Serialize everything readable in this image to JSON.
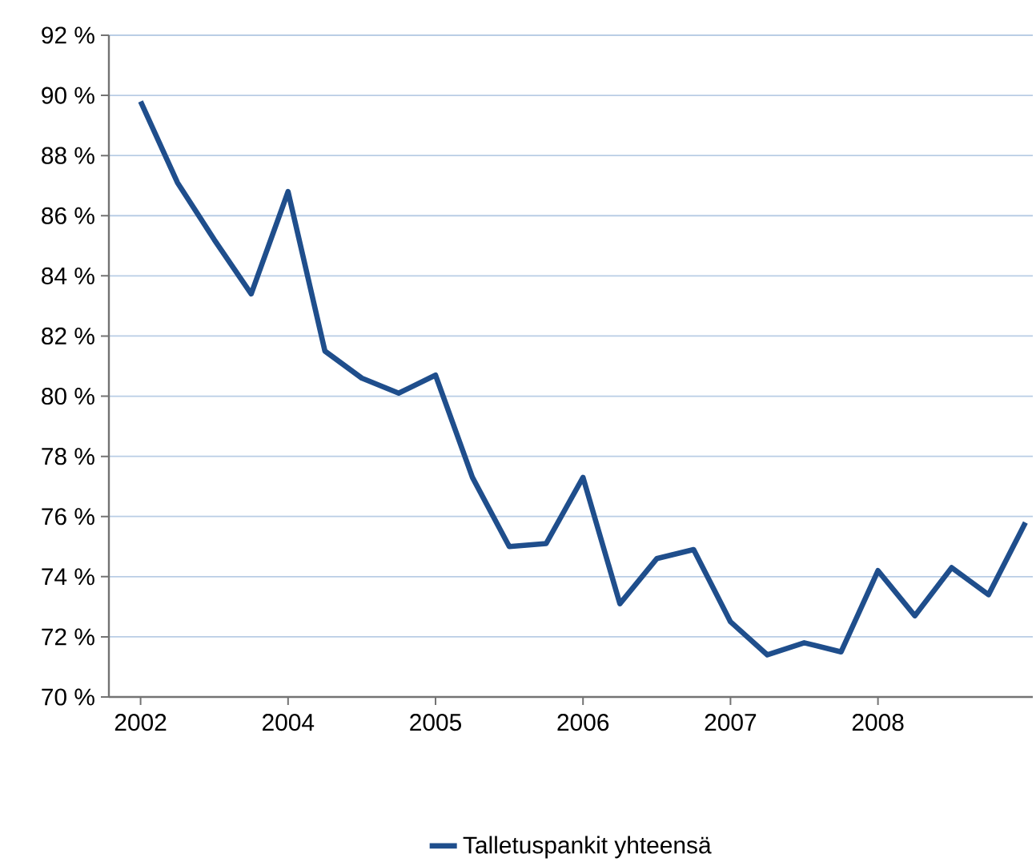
{
  "chart_data": {
    "type": "line",
    "categories": [
      "2002",
      null,
      null,
      null,
      "2004",
      null,
      null,
      null,
      "2005",
      null,
      null,
      null,
      "2006",
      null,
      null,
      null,
      "2007",
      null,
      null,
      null,
      "2008",
      null,
      null,
      null,
      null
    ],
    "series": [
      {
        "name": "Talletuspankit yhteensä",
        "color": "#1f4e8c",
        "values": [
          89.8,
          87.1,
          85.2,
          83.4,
          86.8,
          81.5,
          80.6,
          80.1,
          80.7,
          77.3,
          75.0,
          75.1,
          77.3,
          73.1,
          74.6,
          74.9,
          72.5,
          71.4,
          71.8,
          71.5,
          74.2,
          72.7,
          74.3,
          73.4,
          75.8
        ]
      }
    ],
    "ylim": [
      70,
      92
    ],
    "yticks": [
      {
        "value": 70,
        "label": "70 %"
      },
      {
        "value": 72,
        "label": "72 %"
      },
      {
        "value": 74,
        "label": "74 %"
      },
      {
        "value": 76,
        "label": "76 %"
      },
      {
        "value": 78,
        "label": "78 %"
      },
      {
        "value": 80,
        "label": "80 %"
      },
      {
        "value": 82,
        "label": "82 %"
      },
      {
        "value": 84,
        "label": "84 %"
      },
      {
        "value": 86,
        "label": "86 %"
      },
      {
        "value": 88,
        "label": "88 %"
      },
      {
        "value": 90,
        "label": "90 %"
      },
      {
        "value": 92,
        "label": "92 %"
      }
    ],
    "grid": "y",
    "legend": "bottom",
    "marker": "none",
    "line_style": "solid"
  }
}
